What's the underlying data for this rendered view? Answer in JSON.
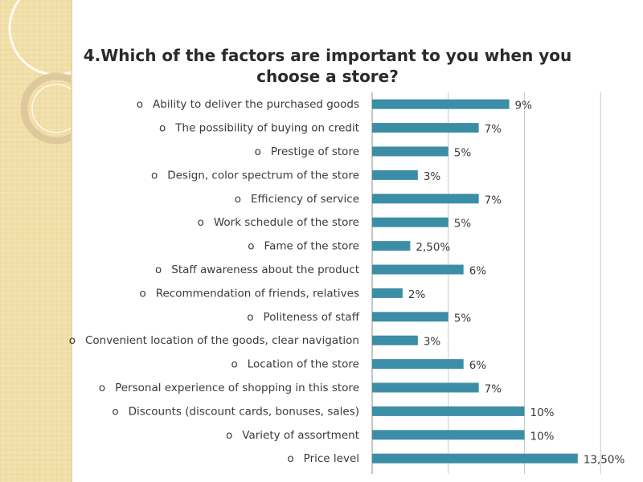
{
  "chart_data": {
    "type": "bar",
    "orientation": "horizontal",
    "title": "4.Which of the factors are important to you when you choose a store?",
    "bullet": "o",
    "categories": [
      "Ability to deliver the purchased goods",
      "The possibility of buying on credit",
      "Prestige of store",
      "Design, color spectrum of the store",
      "Efficiency of service",
      "Work schedule of  the store",
      "Fame of the store",
      "Staff awareness about the product",
      "Recommendation of friends, relatives",
      "Politeness of staff",
      "Convenient location of the goods, clear navigation",
      "Location of the store",
      "Personal experience  of shopping in this store",
      "Discounts (discount cards, bonuses, sales)",
      "Variety of assortment",
      "Price level"
    ],
    "values": [
      9,
      7,
      5,
      3,
      7,
      5,
      2.5,
      6,
      2,
      5,
      3,
      6,
      7,
      10,
      10,
      13.5
    ],
    "data_labels": [
      "9%",
      "7%",
      "5%",
      "3%",
      "7%",
      "5%",
      "2,50%",
      "6%",
      "2%",
      "5%",
      "3%",
      "6%",
      "7%",
      "10%",
      "10%",
      "13,50%"
    ],
    "xlim": [
      0,
      15
    ],
    "gridlines_at": [
      0,
      5,
      10,
      15
    ],
    "bar_color": "#3b8ea5",
    "grid": true,
    "legend": false,
    "xlabel": "",
    "ylabel": ""
  }
}
